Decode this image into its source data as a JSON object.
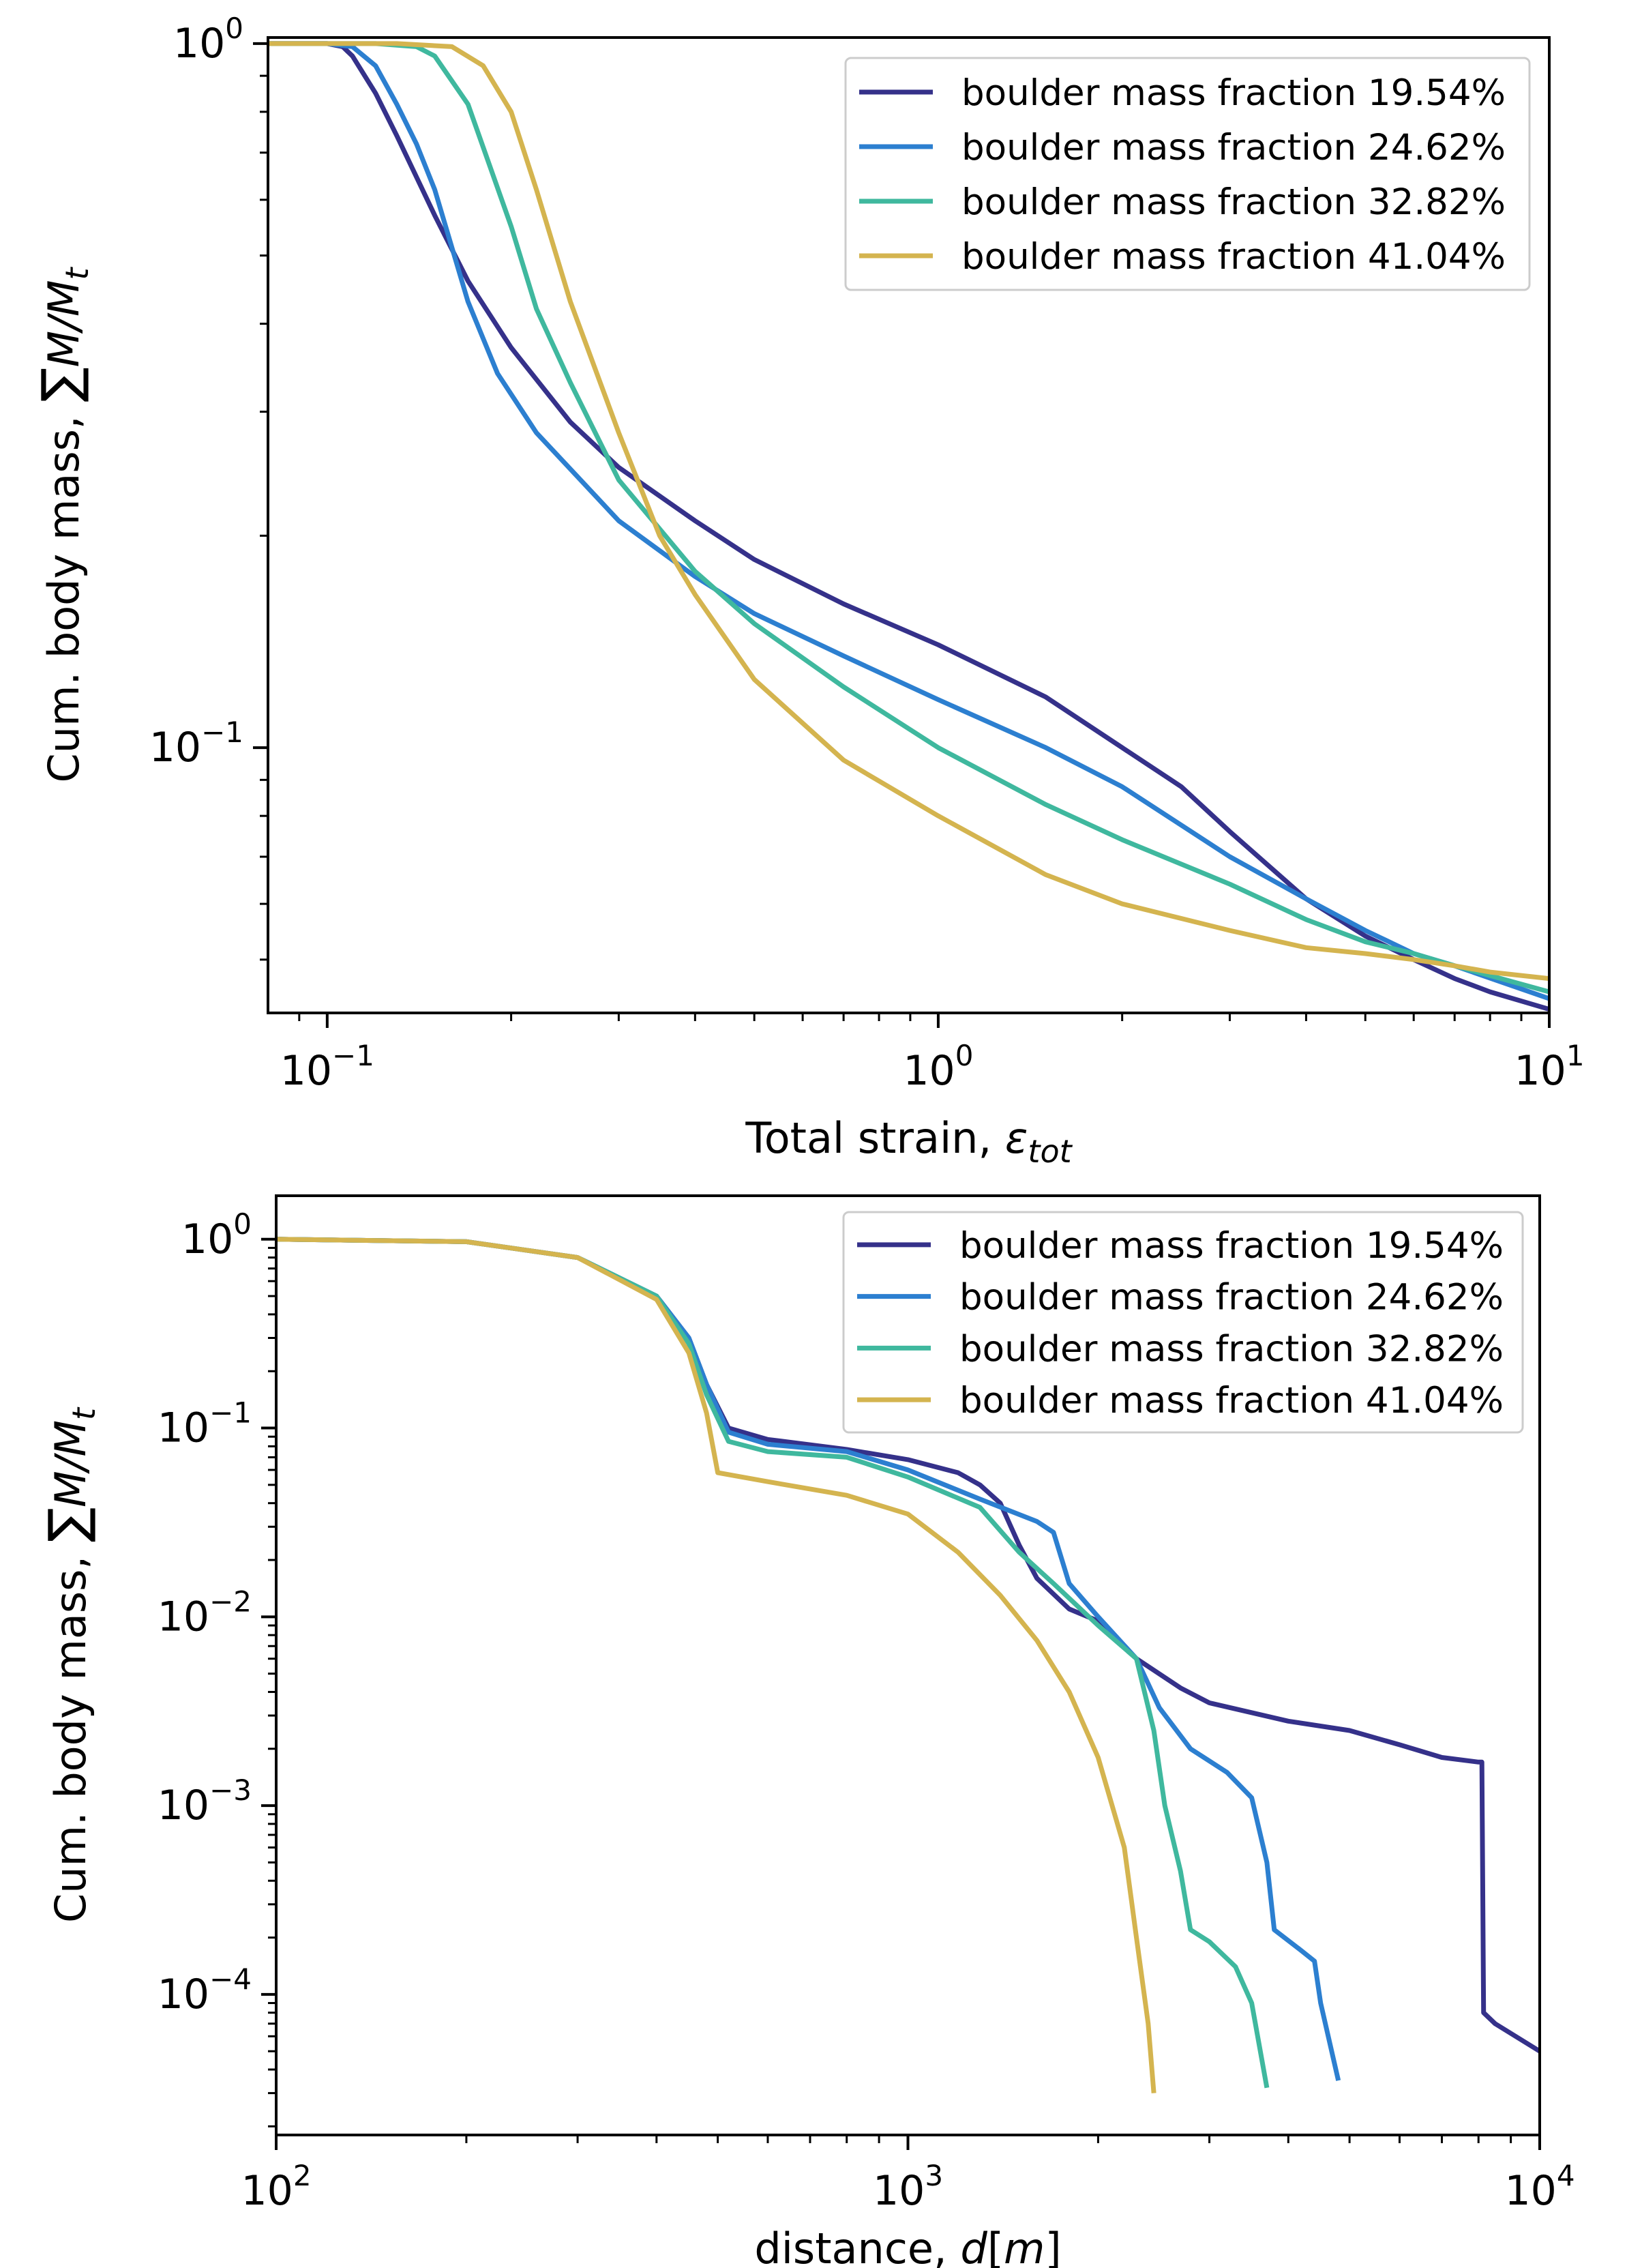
{
  "chart_data": [
    {
      "type": "line",
      "xscale": "log",
      "yscale": "log",
      "xlim": [
        0.08,
        10
      ],
      "ylim": [
        0.042,
        1.02
      ],
      "xticks": [
        {
          "value": 0.1,
          "base": "10",
          "exp": "−1"
        },
        {
          "value": 1,
          "base": "10",
          "exp": "0"
        },
        {
          "value": 10,
          "base": "10",
          "exp": "1"
        }
      ],
      "yticks": [
        {
          "value": 1,
          "base": "10",
          "exp": "0"
        },
        {
          "value": 0.1,
          "base": "10",
          "exp": "−1"
        }
      ],
      "xlabel": {
        "text": "Total strain, ",
        "symbol": "ε",
        "sub": "tot"
      },
      "ylabel": {
        "text": "Cum. body mass, ",
        "symbol": "∑",
        "math": "M/M",
        "sub": "t"
      },
      "grid": false,
      "legend": "top-right",
      "series": [
        {
          "name": "boulder mass fraction 19.54%",
          "color": "#35318a",
          "points": [
            [
              0.08,
              1
            ],
            [
              0.1,
              1
            ],
            [
              0.106,
              0.99
            ],
            [
              0.11,
              0.96
            ],
            [
              0.12,
              0.85
            ],
            [
              0.13,
              0.74
            ],
            [
              0.15,
              0.57
            ],
            [
              0.17,
              0.46
            ],
            [
              0.2,
              0.37
            ],
            [
              0.25,
              0.29
            ],
            [
              0.3,
              0.25
            ],
            [
              0.4,
              0.21
            ],
            [
              0.5,
              0.185
            ],
            [
              0.7,
              0.16
            ],
            [
              1,
              0.14
            ],
            [
              1.5,
              0.118
            ],
            [
              2,
              0.1
            ],
            [
              2.5,
              0.088
            ],
            [
              3,
              0.076
            ],
            [
              4,
              0.061
            ],
            [
              5,
              0.054
            ],
            [
              6,
              0.05
            ],
            [
              7,
              0.047
            ],
            [
              8,
              0.045
            ],
            [
              10,
              0.0425
            ]
          ]
        },
        {
          "name": "boulder mass fraction 24.62%",
          "color": "#2c7fd0",
          "points": [
            [
              0.08,
              1
            ],
            [
              0.1,
              1
            ],
            [
              0.11,
              0.99
            ],
            [
              0.12,
              0.93
            ],
            [
              0.13,
              0.82
            ],
            [
              0.14,
              0.72
            ],
            [
              0.15,
              0.62
            ],
            [
              0.17,
              0.43
            ],
            [
              0.19,
              0.34
            ],
            [
              0.22,
              0.28
            ],
            [
              0.3,
              0.21
            ],
            [
              0.4,
              0.175
            ],
            [
              0.5,
              0.155
            ],
            [
              0.7,
              0.135
            ],
            [
              1,
              0.117
            ],
            [
              1.5,
              0.1
            ],
            [
              2,
              0.088
            ],
            [
              3,
              0.07
            ],
            [
              4,
              0.061
            ],
            [
              5,
              0.055
            ],
            [
              6,
              0.051
            ],
            [
              7,
              0.049
            ],
            [
              10,
              0.044
            ]
          ]
        },
        {
          "name": "boulder mass fraction 32.82%",
          "color": "#3fb89e",
          "points": [
            [
              0.08,
              1
            ],
            [
              0.12,
              1
            ],
            [
              0.14,
              0.99
            ],
            [
              0.15,
              0.96
            ],
            [
              0.17,
              0.82
            ],
            [
              0.2,
              0.55
            ],
            [
              0.22,
              0.42
            ],
            [
              0.25,
              0.33
            ],
            [
              0.3,
              0.24
            ],
            [
              0.4,
              0.178
            ],
            [
              0.5,
              0.15
            ],
            [
              0.7,
              0.122
            ],
            [
              1,
              0.1
            ],
            [
              1.5,
              0.083
            ],
            [
              2,
              0.074
            ],
            [
              3,
              0.064
            ],
            [
              4,
              0.057
            ],
            [
              5,
              0.053
            ],
            [
              6,
              0.051
            ],
            [
              7,
              0.049
            ],
            [
              10,
              0.045
            ]
          ]
        },
        {
          "name": "boulder mass fraction 41.04%",
          "color": "#d4b44f",
          "points": [
            [
              0.08,
              1
            ],
            [
              0.13,
              1
            ],
            [
              0.16,
              0.99
            ],
            [
              0.18,
              0.93
            ],
            [
              0.2,
              0.8
            ],
            [
              0.22,
              0.62
            ],
            [
              0.25,
              0.43
            ],
            [
              0.3,
              0.28
            ],
            [
              0.35,
              0.2
            ],
            [
              0.4,
              0.165
            ],
            [
              0.5,
              0.125
            ],
            [
              0.7,
              0.096
            ],
            [
              1,
              0.08
            ],
            [
              1.5,
              0.066
            ],
            [
              2,
              0.06
            ],
            [
              3,
              0.055
            ],
            [
              4,
              0.052
            ],
            [
              5,
              0.051
            ],
            [
              6,
              0.05
            ],
            [
              7,
              0.049
            ],
            [
              8,
              0.048
            ],
            [
              10,
              0.047
            ]
          ]
        }
      ]
    },
    {
      "type": "line",
      "xscale": "log",
      "yscale": "log",
      "xlim": [
        100,
        10000
      ],
      "ylim": [
        1.8e-05,
        1.7
      ],
      "xticks": [
        {
          "value": 100,
          "base": "10",
          "exp": "2"
        },
        {
          "value": 1000,
          "base": "10",
          "exp": "3"
        },
        {
          "value": 10000,
          "base": "10",
          "exp": "4"
        }
      ],
      "yticks": [
        {
          "value": 1,
          "base": "10",
          "exp": "0"
        },
        {
          "value": 0.1,
          "base": "10",
          "exp": "−1"
        },
        {
          "value": 0.01,
          "base": "10",
          "exp": "−2"
        },
        {
          "value": 0.001,
          "base": "10",
          "exp": "−3"
        },
        {
          "value": 0.0001,
          "base": "10",
          "exp": "−4"
        }
      ],
      "xlabel": {
        "text": "distance, ",
        "symbol": "d",
        "unit_open": "[",
        "math": "m",
        "unit_close": "]"
      },
      "ylabel": {
        "text": "Cum. body mass, ",
        "symbol": "∑",
        "math": "M/M",
        "sub": "t"
      },
      "grid": false,
      "legend": "top-right",
      "series": [
        {
          "name": "boulder mass fraction 19.54%",
          "color": "#35318a",
          "points": [
            [
              100,
              1
            ],
            [
              200,
              0.97
            ],
            [
              300,
              0.8
            ],
            [
              400,
              0.5
            ],
            [
              450,
              0.3
            ],
            [
              480,
              0.17
            ],
            [
              520,
              0.1
            ],
            [
              600,
              0.087
            ],
            [
              800,
              0.077
            ],
            [
              1000,
              0.068
            ],
            [
              1200,
              0.058
            ],
            [
              1300,
              0.05
            ],
            [
              1400,
              0.04
            ],
            [
              1500,
              0.024
            ],
            [
              1600,
              0.016
            ],
            [
              1800,
              0.011
            ],
            [
              2000,
              0.0095
            ],
            [
              2300,
              0.006
            ],
            [
              2700,
              0.0042
            ],
            [
              3000,
              0.0035
            ],
            [
              4000,
              0.0028
            ],
            [
              5000,
              0.0025
            ],
            [
              6000,
              0.0021
            ],
            [
              7000,
              0.0018
            ],
            [
              8000,
              0.0017
            ],
            [
              8100,
              0.0017
            ],
            [
              8150,
              8e-05
            ],
            [
              8500,
              7e-05
            ],
            [
              10000,
              5e-05
            ]
          ]
        },
        {
          "name": "boulder mass fraction 24.62%",
          "color": "#2c7fd0",
          "points": [
            [
              100,
              1
            ],
            [
              200,
              0.97
            ],
            [
              300,
              0.8
            ],
            [
              400,
              0.5
            ],
            [
              450,
              0.3
            ],
            [
              480,
              0.17
            ],
            [
              520,
              0.095
            ],
            [
              600,
              0.082
            ],
            [
              800,
              0.075
            ],
            [
              1000,
              0.06
            ],
            [
              1300,
              0.042
            ],
            [
              1600,
              0.032
            ],
            [
              1700,
              0.028
            ],
            [
              1800,
              0.015
            ],
            [
              2000,
              0.01
            ],
            [
              2300,
              0.006
            ],
            [
              2500,
              0.0033
            ],
            [
              2800,
              0.002
            ],
            [
              3200,
              0.0015
            ],
            [
              3500,
              0.0011
            ],
            [
              3700,
              0.0005
            ],
            [
              3800,
              0.00022
            ],
            [
              4200,
              0.00017
            ],
            [
              4400,
              0.00015
            ],
            [
              4500,
              9e-05
            ],
            [
              4800,
              3.5e-05
            ]
          ]
        },
        {
          "name": "boulder mass fraction 32.82%",
          "color": "#3fb89e",
          "points": [
            [
              100,
              1
            ],
            [
              200,
              0.97
            ],
            [
              300,
              0.8
            ],
            [
              400,
              0.5
            ],
            [
              450,
              0.28
            ],
            [
              480,
              0.15
            ],
            [
              520,
              0.085
            ],
            [
              600,
              0.075
            ],
            [
              800,
              0.07
            ],
            [
              1000,
              0.055
            ],
            [
              1300,
              0.038
            ],
            [
              1500,
              0.022
            ],
            [
              1700,
              0.015
            ],
            [
              2000,
              0.009
            ],
            [
              2300,
              0.006
            ],
            [
              2450,
              0.0025
            ],
            [
              2550,
              0.001
            ],
            [
              2700,
              0.00045
            ],
            [
              2800,
              0.00022
            ],
            [
              3000,
              0.00019
            ],
            [
              3300,
              0.00014
            ],
            [
              3500,
              9e-05
            ],
            [
              3700,
              3.2e-05
            ]
          ]
        },
        {
          "name": "boulder mass fraction 41.04%",
          "color": "#d4b44f",
          "points": [
            [
              100,
              1
            ],
            [
              200,
              0.97
            ],
            [
              300,
              0.8
            ],
            [
              400,
              0.48
            ],
            [
              450,
              0.25
            ],
            [
              480,
              0.12
            ],
            [
              500,
              0.058
            ],
            [
              600,
              0.052
            ],
            [
              800,
              0.044
            ],
            [
              1000,
              0.035
            ],
            [
              1200,
              0.022
            ],
            [
              1400,
              0.013
            ],
            [
              1600,
              0.0075
            ],
            [
              1800,
              0.004
            ],
            [
              2000,
              0.0018
            ],
            [
              2200,
              0.0006
            ],
            [
              2300,
              0.0002
            ],
            [
              2400,
              7e-05
            ],
            [
              2450,
              3e-05
            ]
          ]
        }
      ]
    }
  ]
}
